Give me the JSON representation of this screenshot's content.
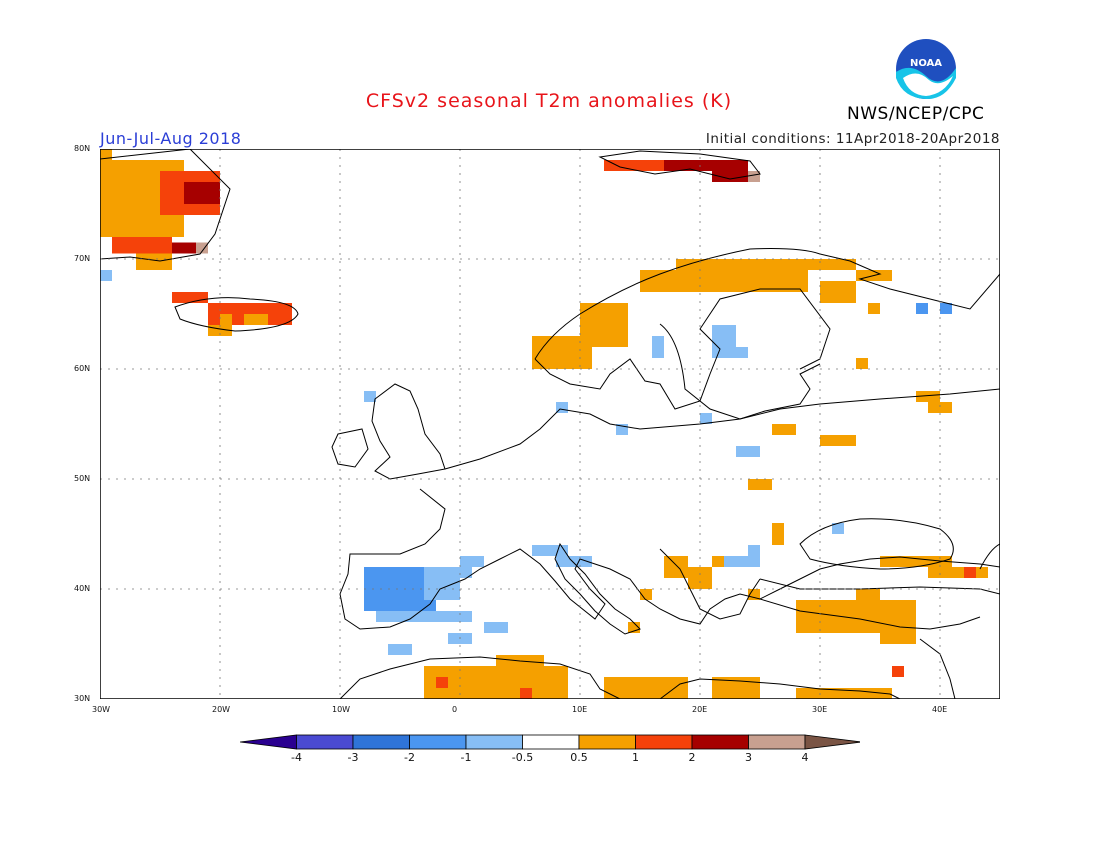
{
  "header": {
    "title": "CFSv2 seasonal T2m anomalies (K)",
    "period": "Jun-Jul-Aug 2018",
    "initial_conditions": "Initial conditions: 11Apr2018-20Apr2018",
    "org": "NWS/NCEP/CPC",
    "logo_text": "NOAA"
  },
  "map": {
    "lon_range": [
      -30,
      45
    ],
    "lat_range": [
      30,
      80
    ],
    "lat_ticks": [
      "80N",
      "70N",
      "60N",
      "50N",
      "40N",
      "30N"
    ],
    "lon_ticks": [
      "30W",
      "20W",
      "10W",
      "0",
      "10E",
      "20E",
      "30E",
      "40E"
    ],
    "anomaly_classes": {
      "warm1": "#f5a000",
      "warm2": "#f5420a",
      "warm3": "#a60000",
      "warm4": "#c8a090",
      "cool1": "#87bef5",
      "cool2": "#4b96f0"
    }
  },
  "colorbar": {
    "colors": [
      "#2a0090",
      "#4a4ad2",
      "#2f74d8",
      "#4b96f0",
      "#87bef5",
      "#ffffff",
      "#f5a000",
      "#f5420a",
      "#a60000",
      "#c8a090",
      "#7a5444"
    ],
    "labels": [
      "-4",
      "-3",
      "-2",
      "-1",
      "-0.5",
      "0.5",
      "1",
      "2",
      "3",
      "4"
    ]
  }
}
